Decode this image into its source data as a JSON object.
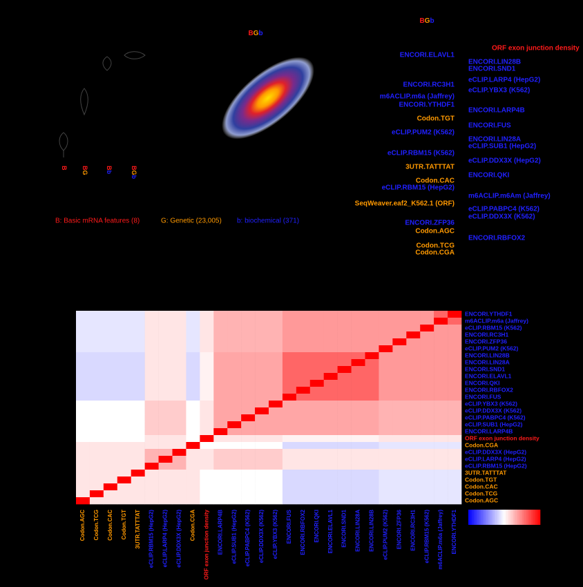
{
  "letter_colors": {
    "B": "#ff1a1a",
    "G": "#ff9900",
    "b": "#2020ff"
  },
  "top_labels": [
    "BGb",
    "BGb"
  ],
  "violin_labels": [
    "B",
    "BG",
    "Bb",
    "BGb"
  ],
  "legend": [
    {
      "text": "B: Basic mRNA features (8)",
      "color": "#ff1a1a"
    },
    {
      "text": "G: Genetic (23,005)",
      "color": "#ff9900"
    },
    {
      "text": "b: biochemical (371)",
      "color": "#2020ff"
    }
  ],
  "feature_labels": {
    "left": [
      {
        "text": "ENCORI.ELAVL1",
        "color": "#2020ff"
      },
      {
        "text": "ENCORI.RC3H1",
        "color": "#2020ff"
      },
      {
        "text": "m6ACLIP.m6a (Jaffrey)",
        "color": "#2020ff"
      },
      {
        "text": "ENCORI.YTHDF1",
        "color": "#2020ff"
      },
      {
        "text": "Codon.TGT",
        "color": "#ff9900"
      },
      {
        "text": "eCLIP.PUM2 (K562)",
        "color": "#2020ff"
      },
      {
        "text": "eCLIP.RBM15 (K562)",
        "color": "#2020ff"
      },
      {
        "text": "3UTR.TATTTAT",
        "color": "#ff9900"
      },
      {
        "text": "Codon.CAC",
        "color": "#ff9900"
      },
      {
        "text": "eCLIP.RBM15 (HepG2)",
        "color": "#2020ff"
      },
      {
        "text": "SeqWeaver.eaf2_K562.1 (ORF)",
        "color": "#ff9900"
      },
      {
        "text": "ENCORI.ZFP36",
        "color": "#2020ff"
      },
      {
        "text": "Codon.AGC",
        "color": "#ff9900"
      },
      {
        "text": "Codon.TCG",
        "color": "#ff9900"
      },
      {
        "text": "Codon.CGA",
        "color": "#ff9900"
      }
    ],
    "right": [
      {
        "text": "ORF exon junction density",
        "color": "#ff1a1a"
      },
      {
        "text": "ENCORI.LIN28B",
        "color": "#2020ff"
      },
      {
        "text": "ENCORI.SND1",
        "color": "#2020ff"
      },
      {
        "text": "eCLIP.LARP4 (HepG2)",
        "color": "#2020ff"
      },
      {
        "text": "eCLIP.YBX3 (K562)",
        "color": "#2020ff"
      },
      {
        "text": "ENCORI.LARP4B",
        "color": "#2020ff"
      },
      {
        "text": "ENCORI.FUS",
        "color": "#2020ff"
      },
      {
        "text": "ENCORI.LIN28A",
        "color": "#2020ff"
      },
      {
        "text": "eCLIP.SUB1 (HepG2)",
        "color": "#2020ff"
      },
      {
        "text": "eCLIP.DDX3X (HepG2)",
        "color": "#2020ff"
      },
      {
        "text": "ENCORI.QKI",
        "color": "#2020ff"
      },
      {
        "text": "m6ACLIP.m6Am (Jaffrey)",
        "color": "#2020ff"
      },
      {
        "text": "eCLIP.PABPC4 (K562)",
        "color": "#2020ff"
      },
      {
        "text": "eCLIP.DDX3X (K562)",
        "color": "#2020ff"
      },
      {
        "text": "ENCORI.RBFOX2",
        "color": "#2020ff"
      }
    ]
  },
  "chart_data": {
    "type": "heatmap",
    "rows": [
      "ENCORI.YTHDF1",
      "m6ACLIP.m6a (Jaffrey)",
      "eCLIP.RBM15 (K562)",
      "ENCORI.RC3H1",
      "ENCORI.ZFP36",
      "eCLIP.PUM2 (K562)",
      "ENCORI.LIN28B",
      "ENCORI.LIN28A",
      "ENCORI.SND1",
      "ENCORI.ELAVL1",
      "ENCORI.QKI",
      "ENCORI.RBFOX2",
      "ENCORI.FUS",
      "eCLIP.YBX3 (K562)",
      "eCLIP.DDX3X (K562)",
      "eCLIP.PABPC4 (K562)",
      "eCLIP.SUB1 (HepG2)",
      "ENCORI.LARP4B",
      "ORF exon junction density",
      "Codon.CGA",
      "eCLIP.DDX3X (HepG2)",
      "eCLIP.LARP4 (HepG2)",
      "eCLIP.RBM15 (HepG2)",
      "3UTR.TATTTAT",
      "Codon.TGT",
      "Codon.CAC",
      "Codon.TCG",
      "Codon.AGC"
    ],
    "row_colors": [
      "#2020ff",
      "#2020ff",
      "#2020ff",
      "#2020ff",
      "#2020ff",
      "#2020ff",
      "#2020ff",
      "#2020ff",
      "#2020ff",
      "#2020ff",
      "#2020ff",
      "#2020ff",
      "#2020ff",
      "#2020ff",
      "#2020ff",
      "#2020ff",
      "#2020ff",
      "#2020ff",
      "#ff1a1a",
      "#ff9900",
      "#2020ff",
      "#2020ff",
      "#2020ff",
      "#ff9900",
      "#ff9900",
      "#ff9900",
      "#ff9900",
      "#ff9900"
    ],
    "columns": [
      "Codon.AGC",
      "Codon.TCG",
      "Codon.CAC",
      "Codon.TGT",
      "3UTR.TATTTAT",
      "eCLIP.RBM15 (HepG2)",
      "eCLIP.LARP4 (HepG2)",
      "eCLIP.DDX3X (HepG2)",
      "Codon.CGA",
      "ORF exon junction density",
      "ENCORI.LARP4B",
      "eCLIP.SUB1 (HepG2)",
      "eCLIP.PABPC4 (K562)",
      "eCLIP.DDX3X (K562)",
      "eCLIP.YBX3 (K562)",
      "ENCORI.FUS",
      "ENCORI.RBFOX2",
      "ENCORI.QKI",
      "ENCORI.ELAVL1",
      "ENCORI.SND1",
      "ENCORI.LIN28A",
      "ENCORI.LIN28B",
      "eCLIP.PUM2 (K562)",
      "ENCORI.ZFP36",
      "ENCORI.RC3H1",
      "eCLIP.RBM15 (K562)",
      "m6ACLIP.m6a (Jaffrey)",
      "ENCORI.YTHDF1"
    ],
    "column_colors": [
      "#ff9900",
      "#ff9900",
      "#ff9900",
      "#ff9900",
      "#ff9900",
      "#2020ff",
      "#2020ff",
      "#2020ff",
      "#ff9900",
      "#ff1a1a",
      "#2020ff",
      "#2020ff",
      "#2020ff",
      "#2020ff",
      "#2020ff",
      "#2020ff",
      "#2020ff",
      "#2020ff",
      "#2020ff",
      "#2020ff",
      "#2020ff",
      "#2020ff",
      "#2020ff",
      "#2020ff",
      "#2020ff",
      "#2020ff",
      "#2020ff",
      "#2020ff"
    ],
    "values": [
      [
        -0.1,
        -0.1,
        -0.1,
        -0.1,
        -0.1,
        0.1,
        0.1,
        0.1,
        -0.1,
        0.1,
        0.3,
        0.3,
        0.3,
        0.3,
        0.3,
        0.4,
        0.4,
        0.4,
        0.4,
        0.4,
        0.4,
        0.4,
        0.4,
        0.4,
        0.4,
        0.4,
        0.6,
        1
      ],
      [
        -0.1,
        -0.1,
        -0.1,
        -0.1,
        -0.1,
        0.1,
        0.1,
        0.1,
        -0.1,
        0.1,
        0.3,
        0.3,
        0.3,
        0.3,
        0.3,
        0.4,
        0.4,
        0.4,
        0.4,
        0.4,
        0.4,
        0.4,
        0.4,
        0.4,
        0.4,
        0.4,
        1,
        0.6
      ],
      [
        -0.1,
        -0.1,
        -0.1,
        -0.1,
        -0.1,
        0.1,
        0.1,
        0.1,
        -0.1,
        0.1,
        0.3,
        0.3,
        0.3,
        0.3,
        0.3,
        0.4,
        0.4,
        0.4,
        0.4,
        0.4,
        0.4,
        0.4,
        0.4,
        0.4,
        0.4,
        1,
        0.4,
        0.4
      ],
      [
        -0.1,
        -0.1,
        -0.1,
        -0.1,
        -0.1,
        0.1,
        0.1,
        0.1,
        -0.1,
        0.1,
        0.3,
        0.3,
        0.3,
        0.3,
        0.3,
        0.4,
        0.4,
        0.4,
        0.4,
        0.4,
        0.4,
        0.4,
        0.4,
        0.4,
        1,
        0.4,
        0.4,
        0.4
      ],
      [
        -0.1,
        -0.1,
        -0.1,
        -0.1,
        -0.1,
        0.1,
        0.1,
        0.1,
        -0.1,
        0.1,
        0.3,
        0.3,
        0.3,
        0.3,
        0.3,
        0.4,
        0.4,
        0.4,
        0.4,
        0.4,
        0.4,
        0.4,
        0.4,
        1,
        0.4,
        0.4,
        0.4,
        0.4
      ],
      [
        -0.1,
        -0.1,
        -0.1,
        -0.1,
        -0.1,
        0.1,
        0.1,
        0.1,
        -0.1,
        0.1,
        0.3,
        0.3,
        0.3,
        0.3,
        0.3,
        0.4,
        0.4,
        0.4,
        0.4,
        0.4,
        0.4,
        0.4,
        1,
        0.4,
        0.4,
        0.4,
        0.4,
        0.4
      ],
      [
        -0.15,
        -0.15,
        -0.15,
        -0.15,
        -0.15,
        0.1,
        0.1,
        0.1,
        -0.15,
        0.05,
        0.35,
        0.35,
        0.35,
        0.35,
        0.35,
        0.6,
        0.6,
        0.6,
        0.6,
        0.6,
        0.6,
        1,
        0.4,
        0.4,
        0.4,
        0.4,
        0.4,
        0.4
      ],
      [
        -0.15,
        -0.15,
        -0.15,
        -0.15,
        -0.15,
        0.1,
        0.1,
        0.1,
        -0.15,
        0.05,
        0.35,
        0.35,
        0.35,
        0.35,
        0.35,
        0.6,
        0.6,
        0.6,
        0.6,
        0.6,
        1,
        0.6,
        0.4,
        0.4,
        0.4,
        0.4,
        0.4,
        0.4
      ],
      [
        -0.15,
        -0.15,
        -0.15,
        -0.15,
        -0.15,
        0.1,
        0.1,
        0.1,
        -0.15,
        0.05,
        0.35,
        0.35,
        0.35,
        0.35,
        0.35,
        0.6,
        0.6,
        0.6,
        0.6,
        1,
        0.6,
        0.6,
        0.4,
        0.4,
        0.4,
        0.4,
        0.4,
        0.4
      ],
      [
        -0.15,
        -0.15,
        -0.15,
        -0.15,
        -0.15,
        0.1,
        0.1,
        0.1,
        -0.15,
        0.05,
        0.35,
        0.35,
        0.35,
        0.35,
        0.35,
        0.6,
        0.6,
        0.6,
        1,
        0.6,
        0.6,
        0.6,
        0.4,
        0.4,
        0.4,
        0.4,
        0.4,
        0.4
      ],
      [
        -0.15,
        -0.15,
        -0.15,
        -0.15,
        -0.15,
        0.1,
        0.1,
        0.1,
        -0.15,
        0.05,
        0.35,
        0.35,
        0.35,
        0.35,
        0.35,
        0.6,
        0.6,
        1,
        0.6,
        0.6,
        0.6,
        0.6,
        0.4,
        0.4,
        0.4,
        0.4,
        0.4,
        0.4
      ],
      [
        -0.15,
        -0.15,
        -0.15,
        -0.15,
        -0.15,
        0.1,
        0.1,
        0.1,
        -0.15,
        0.05,
        0.35,
        0.35,
        0.35,
        0.35,
        0.35,
        0.6,
        1,
        0.6,
        0.6,
        0.6,
        0.6,
        0.6,
        0.4,
        0.4,
        0.4,
        0.4,
        0.4,
        0.4
      ],
      [
        -0.15,
        -0.15,
        -0.15,
        -0.15,
        -0.15,
        0.1,
        0.1,
        0.1,
        -0.15,
        0.05,
        0.35,
        0.35,
        0.35,
        0.35,
        0.35,
        1,
        0.6,
        0.6,
        0.6,
        0.6,
        0.6,
        0.6,
        0.4,
        0.4,
        0.4,
        0.4,
        0.4,
        0.4
      ],
      [
        0,
        0,
        0,
        0,
        0,
        0.2,
        0.2,
        0.2,
        0,
        0.1,
        0.35,
        0.35,
        0.35,
        0.35,
        1,
        0.35,
        0.35,
        0.35,
        0.35,
        0.35,
        0.35,
        0.35,
        0.3,
        0.3,
        0.3,
        0.3,
        0.3,
        0.3
      ],
      [
        0,
        0,
        0,
        0,
        0,
        0.2,
        0.2,
        0.2,
        0,
        0.1,
        0.35,
        0.35,
        0.35,
        1,
        0.35,
        0.35,
        0.35,
        0.35,
        0.35,
        0.35,
        0.35,
        0.35,
        0.3,
        0.3,
        0.3,
        0.3,
        0.3,
        0.3
      ],
      [
        0,
        0,
        0,
        0,
        0,
        0.2,
        0.2,
        0.2,
        0,
        0.1,
        0.35,
        0.35,
        1,
        0.35,
        0.35,
        0.35,
        0.35,
        0.35,
        0.35,
        0.35,
        0.35,
        0.35,
        0.3,
        0.3,
        0.3,
        0.3,
        0.3,
        0.3
      ],
      [
        0,
        0,
        0,
        0,
        0,
        0.2,
        0.2,
        0.2,
        0,
        0.1,
        0.35,
        1,
        0.35,
        0.35,
        0.35,
        0.35,
        0.35,
        0.35,
        0.35,
        0.35,
        0.35,
        0.35,
        0.3,
        0.3,
        0.3,
        0.3,
        0.3,
        0.3
      ],
      [
        0,
        0,
        0,
        0,
        0,
        0.2,
        0.2,
        0.2,
        0,
        0.1,
        1,
        0.35,
        0.35,
        0.35,
        0.35,
        0.35,
        0.35,
        0.35,
        0.35,
        0.35,
        0.35,
        0.35,
        0.3,
        0.3,
        0.3,
        0.3,
        0.3,
        0.3
      ],
      [
        0,
        0,
        0,
        0,
        0,
        0.1,
        0.1,
        0.1,
        0,
        1,
        0.1,
        0.1,
        0.1,
        0.1,
        0.1,
        0.05,
        0.05,
        0.05,
        0.05,
        0.05,
        0.05,
        0.05,
        0.1,
        0.1,
        0.1,
        0.1,
        0.1,
        0.1
      ],
      [
        0.1,
        0.1,
        0.1,
        0.1,
        0.1,
        0.1,
        0.1,
        0.1,
        1,
        0,
        0,
        0,
        0,
        0,
        0,
        -0.15,
        -0.15,
        -0.15,
        -0.15,
        -0.15,
        -0.15,
        -0.15,
        -0.1,
        -0.1,
        -0.1,
        -0.1,
        -0.1,
        -0.1
      ],
      [
        0.1,
        0.1,
        0.1,
        0.1,
        0.1,
        0.3,
        0.3,
        1,
        0.1,
        0.1,
        0.2,
        0.2,
        0.2,
        0.2,
        0.2,
        0.1,
        0.1,
        0.1,
        0.1,
        0.1,
        0.1,
        0.1,
        0.1,
        0.1,
        0.1,
        0.1,
        0.1,
        0.1
      ],
      [
        0.1,
        0.1,
        0.1,
        0.1,
        0.1,
        0.3,
        1,
        0.3,
        0.1,
        0.1,
        0.2,
        0.2,
        0.2,
        0.2,
        0.2,
        0.1,
        0.1,
        0.1,
        0.1,
        0.1,
        0.1,
        0.1,
        0.1,
        0.1,
        0.1,
        0.1,
        0.1,
        0.1
      ],
      [
        0.1,
        0.1,
        0.1,
        0.1,
        0.1,
        1,
        0.3,
        0.3,
        0.1,
        0.1,
        0.2,
        0.2,
        0.2,
        0.2,
        0.2,
        0.1,
        0.1,
        0.1,
        0.1,
        0.1,
        0.1,
        0.1,
        0.1,
        0.1,
        0.1,
        0.1,
        0.1,
        0.1
      ],
      [
        0.1,
        0.1,
        0.1,
        0.1,
        1,
        0.1,
        0.1,
        0.1,
        0.1,
        0,
        0,
        0,
        0,
        0,
        0,
        -0.15,
        -0.15,
        -0.15,
        -0.15,
        -0.15,
        -0.15,
        -0.15,
        -0.1,
        -0.1,
        -0.1,
        -0.1,
        -0.1,
        -0.1
      ],
      [
        0.1,
        0.1,
        0.1,
        1,
        0.1,
        0.1,
        0.1,
        0.1,
        0.1,
        0,
        0,
        0,
        0,
        0,
        0,
        -0.15,
        -0.15,
        -0.15,
        -0.15,
        -0.15,
        -0.15,
        -0.15,
        -0.1,
        -0.1,
        -0.1,
        -0.1,
        -0.1,
        -0.1
      ],
      [
        0.1,
        0.1,
        1,
        0.1,
        0.1,
        0.1,
        0.1,
        0.1,
        0.1,
        0,
        0,
        0,
        0,
        0,
        0,
        -0.15,
        -0.15,
        -0.15,
        -0.15,
        -0.15,
        -0.15,
        -0.15,
        -0.1,
        -0.1,
        -0.1,
        -0.1,
        -0.1,
        -0.1
      ],
      [
        0.1,
        1,
        0.1,
        0.1,
        0.1,
        0.1,
        0.1,
        0.1,
        0.1,
        0,
        0,
        0,
        0,
        0,
        0,
        -0.15,
        -0.15,
        -0.15,
        -0.15,
        -0.15,
        -0.15,
        -0.15,
        -0.1,
        -0.1,
        -0.1,
        -0.1,
        -0.1,
        -0.1
      ],
      [
        1,
        0.1,
        0.1,
        0.1,
        0.1,
        0.1,
        0.1,
        0.1,
        0.1,
        0,
        0,
        0,
        0,
        0,
        0,
        -0.15,
        -0.15,
        -0.15,
        -0.15,
        -0.15,
        -0.15,
        -0.15,
        -0.1,
        -0.1,
        -0.1,
        -0.1,
        -0.1,
        -0.1
      ]
    ],
    "zlim": [
      -1,
      1
    ],
    "colormap": [
      "#0000ff",
      "#ffffff",
      "#ff0000"
    ]
  }
}
